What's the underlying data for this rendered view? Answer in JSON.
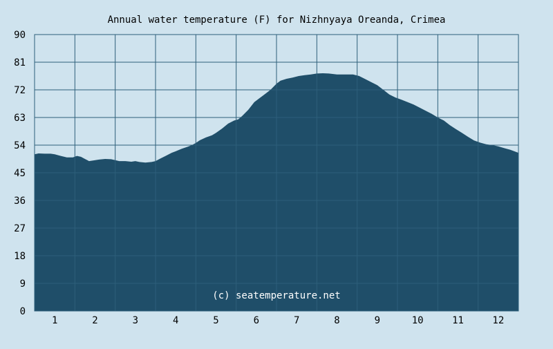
{
  "chart_data": {
    "type": "area",
    "title": "Annual water temperature (F) for Nizhnyaya Oreanda, Crimea",
    "xlabel": "",
    "ylabel": "",
    "x_tick_labels": [
      "1",
      "2",
      "3",
      "4",
      "5",
      "6",
      "7",
      "8",
      "9",
      "10",
      "11",
      "12"
    ],
    "y_tick_labels": [
      "0",
      "9",
      "18",
      "27",
      "36",
      "45",
      "54",
      "63",
      "72",
      "81",
      "90"
    ],
    "ylim": [
      0,
      90
    ],
    "xlim": [
      0.5,
      12.5
    ],
    "grid": true,
    "annotation": "(c) seatemperature.net",
    "colors": {
      "background": "#cfe3ee",
      "fill": "#1f4e69",
      "grid": "#2e5f7a",
      "text": "#000000"
    },
    "series": [
      {
        "x": [
          0.5,
          0.6,
          0.75,
          0.9,
          1.0,
          1.15,
          1.3,
          1.45,
          1.55,
          1.65,
          1.75,
          1.85,
          1.95,
          2.1,
          2.25,
          2.4,
          2.5,
          2.6,
          2.75,
          2.9,
          3.0,
          3.1,
          3.25,
          3.4,
          3.5,
          3.6,
          3.75,
          3.9,
          4.0,
          4.15,
          4.3,
          4.4,
          4.5,
          4.6,
          4.75,
          4.9,
          5.0,
          5.15,
          5.3,
          5.45,
          5.55,
          5.65,
          5.8,
          5.95,
          6.05,
          6.2,
          6.35,
          6.5,
          6.6,
          6.75,
          6.9,
          7.05,
          7.2,
          7.35,
          7.5,
          7.65,
          7.8,
          8.0,
          8.2,
          8.4,
          8.55,
          8.7,
          8.85,
          9.0,
          9.15,
          9.3,
          9.45,
          9.6,
          9.75,
          9.9,
          10.05,
          10.2,
          10.35,
          10.5,
          10.65,
          10.8,
          10.95,
          11.1,
          11.25,
          11.4,
          11.55,
          11.7,
          11.85,
          12.0,
          12.15,
          12.3,
          12.5
        ],
        "values": [
          51,
          51.3,
          51.2,
          51.2,
          51,
          50.5,
          50,
          50,
          50.5,
          50.2,
          49.5,
          48.8,
          49,
          49.3,
          49.5,
          49.4,
          49.1,
          48.8,
          48.8,
          48.6,
          48.8,
          48.5,
          48.3,
          48.5,
          48.8,
          49.5,
          50.5,
          51.5,
          52,
          52.8,
          53.5,
          54,
          54.7,
          55.6,
          56.5,
          57.2,
          58,
          59.4,
          61,
          62,
          62.4,
          63.5,
          65.5,
          68,
          69,
          70.5,
          72,
          74,
          75,
          75.6,
          76,
          76.5,
          76.8,
          77,
          77.3,
          77.4,
          77.3,
          77,
          77,
          77,
          76.5,
          75.5,
          74.5,
          73.5,
          72,
          70.5,
          69.5,
          68.8,
          68,
          67.2,
          66.2,
          65.2,
          64.2,
          63,
          62,
          60.5,
          59.2,
          58,
          56.7,
          55.5,
          54.8,
          54.3,
          54,
          53.6,
          53,
          52.5,
          51.5
        ]
      }
    ]
  }
}
